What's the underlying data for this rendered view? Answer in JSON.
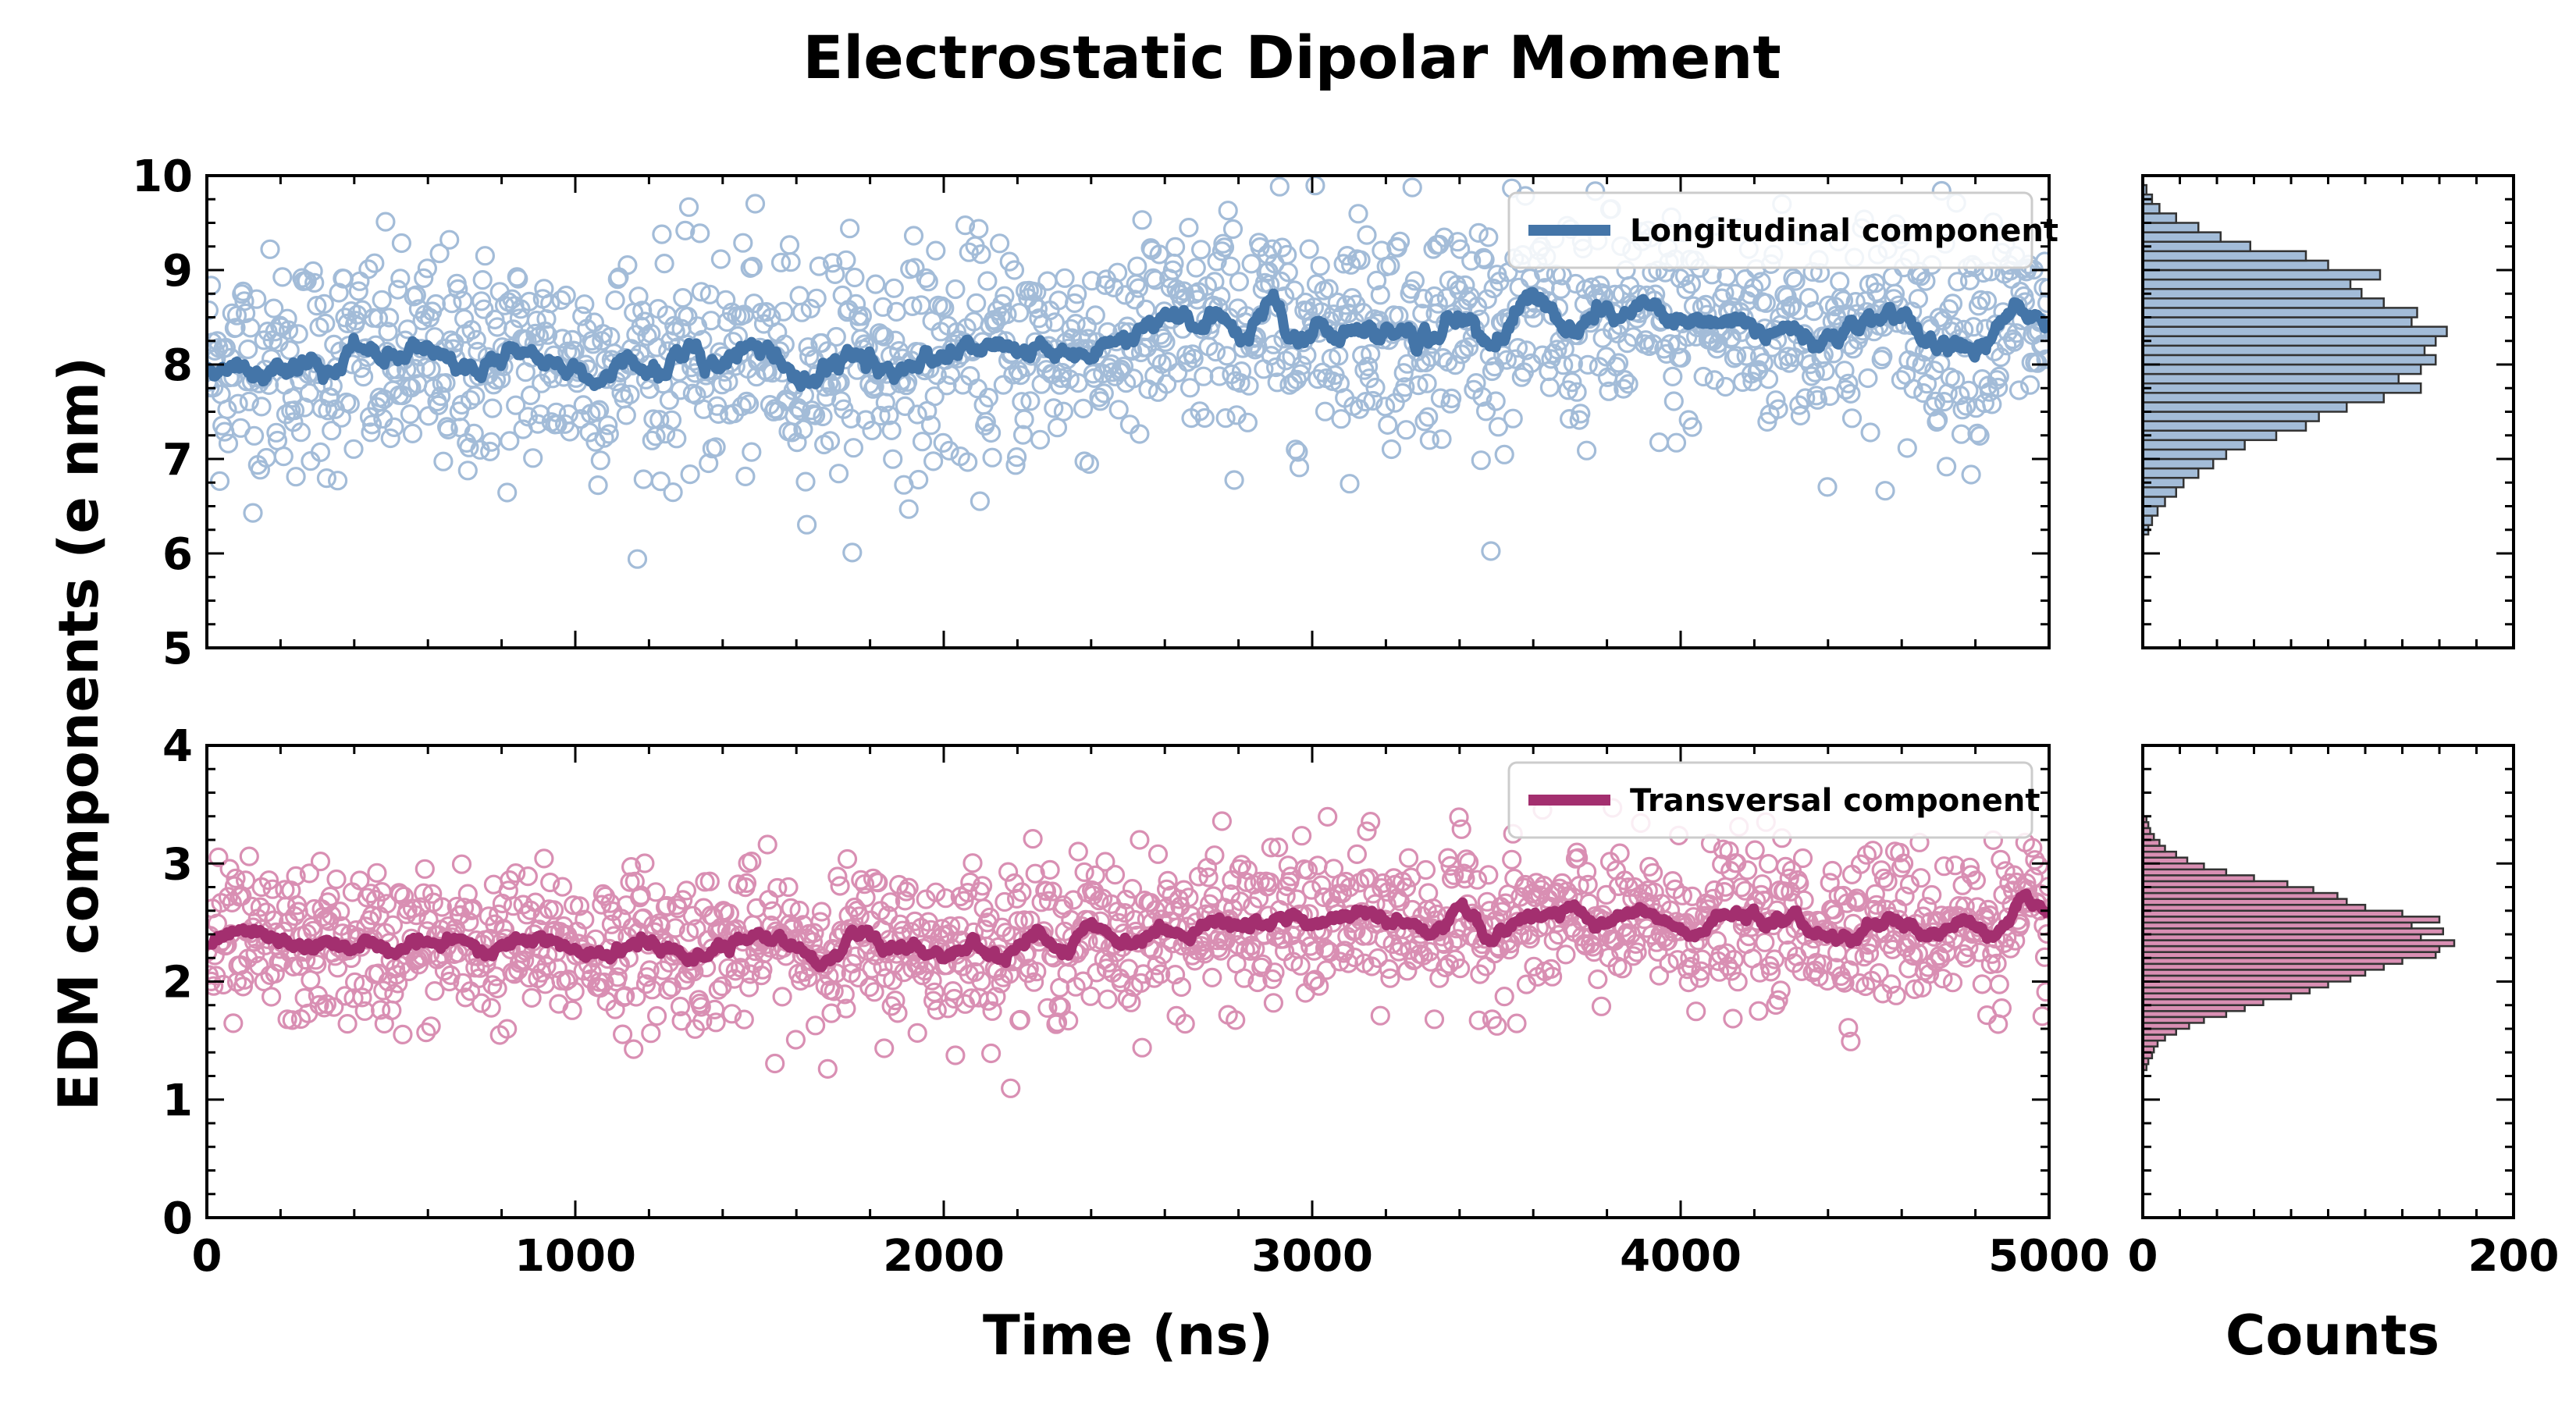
{
  "figure": {
    "title": "Electrostatic Dipolar Moment",
    "ylabel": "EDM components (e nm)",
    "xlabel": "Time (ns)",
    "hist_xlabel": "Counts"
  },
  "colors": {
    "longitudinal": "#4475a8",
    "longitudinal_light": "#a3bcd8",
    "transversal": "#a32f6f",
    "transversal_light": "#d98fb3"
  },
  "chart_data": [
    {
      "type": "scatter",
      "panel": "top-left",
      "series": [
        {
          "name": "Longitudinal component",
          "kind": "scatter",
          "mean_trend": {
            "x": [
              0,
              2000,
              3000,
              5000
            ],
            "y": [
              8.0,
              8.05,
              8.45,
              8.4
            ]
          },
          "spread": 0.6,
          "n_points": 1500
        },
        {
          "name": "Longitudinal component",
          "kind": "line",
          "smoothed": true
        }
      ],
      "xlim": [
        0,
        5000
      ],
      "ylim": [
        5,
        10
      ],
      "xticks": [
        0,
        1000,
        2000,
        3000,
        4000,
        5000
      ],
      "yticks": [
        5,
        6,
        7,
        8,
        9,
        10
      ],
      "legend": "top-right"
    },
    {
      "type": "bar",
      "panel": "top-right",
      "orientation": "horizontal",
      "bin_width": 0.1,
      "bins": [
        6.2,
        6.3,
        6.4,
        6.5,
        6.6,
        6.7,
        6.8,
        6.9,
        7.0,
        7.1,
        7.2,
        7.3,
        7.4,
        7.5,
        7.6,
        7.7,
        7.8,
        7.9,
        8.0,
        8.1,
        8.2,
        8.3,
        8.4,
        8.5,
        8.6,
        8.7,
        8.8,
        8.9,
        9.0,
        9.1,
        9.2,
        9.3,
        9.4,
        9.5,
        9.6,
        9.7,
        9.8
      ],
      "counts": [
        3,
        5,
        8,
        12,
        18,
        22,
        30,
        38,
        45,
        55,
        72,
        88,
        95,
        110,
        130,
        150,
        138,
        150,
        158,
        152,
        158,
        164,
        145,
        148,
        130,
        118,
        112,
        128,
        100,
        88,
        58,
        42,
        30,
        18,
        9,
        5,
        2
      ],
      "xlim": [
        0,
        200
      ],
      "ylim": [
        5,
        10
      ],
      "xticks": [
        0,
        200
      ]
    },
    {
      "type": "scatter",
      "panel": "bottom-left",
      "series": [
        {
          "name": "Transversal component",
          "kind": "scatter",
          "mean_trend": {
            "x": [
              0,
              2000,
              3000,
              5000
            ],
            "y": [
              2.28,
              2.3,
              2.5,
              2.48
            ]
          },
          "spread": 0.33,
          "n_points": 1500
        },
        {
          "name": "Transversal component",
          "kind": "line",
          "smoothed": true
        }
      ],
      "xlim": [
        0,
        5000
      ],
      "ylim": [
        0,
        4
      ],
      "xticks": [
        0,
        1000,
        2000,
        3000,
        4000,
        5000
      ],
      "yticks": [
        0,
        1,
        2,
        3,
        4
      ],
      "legend": "top-right"
    },
    {
      "type": "bar",
      "panel": "bottom-right",
      "orientation": "horizontal",
      "bin_width": 0.05,
      "bins": [
        1.25,
        1.3,
        1.35,
        1.4,
        1.45,
        1.5,
        1.55,
        1.6,
        1.65,
        1.7,
        1.75,
        1.8,
        1.85,
        1.9,
        1.95,
        2.0,
        2.05,
        2.1,
        2.15,
        2.2,
        2.25,
        2.3,
        2.35,
        2.4,
        2.45,
        2.5,
        2.55,
        2.6,
        2.65,
        2.7,
        2.75,
        2.8,
        2.85,
        2.9,
        2.95,
        3.0,
        3.05,
        3.1,
        3.15,
        3.2,
        3.25,
        3.3,
        3.35
      ],
      "counts": [
        2,
        3,
        5,
        6,
        8,
        12,
        18,
        25,
        33,
        45,
        55,
        65,
        80,
        90,
        100,
        112,
        120,
        130,
        140,
        158,
        160,
        168,
        150,
        162,
        145,
        160,
        140,
        120,
        110,
        105,
        92,
        78,
        60,
        45,
        33,
        24,
        18,
        12,
        9,
        6,
        4,
        3,
        2
      ],
      "xlim": [
        0,
        200
      ],
      "ylim": [
        0,
        4
      ],
      "xticks": [
        0,
        200
      ]
    }
  ]
}
